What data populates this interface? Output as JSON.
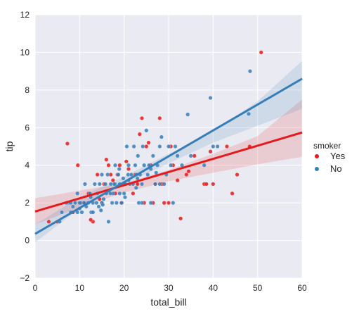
{
  "chart_data": {
    "type": "scatter",
    "xlabel": "total_bill",
    "ylabel": "tip",
    "xlim": [
      0,
      60
    ],
    "ylim": [
      -2,
      12
    ],
    "xticks": [
      0,
      10,
      20,
      30,
      40,
      50,
      60
    ],
    "yticks": [
      -2,
      0,
      2,
      4,
      6,
      8,
      10,
      12
    ],
    "grid": true,
    "legend": {
      "title": "smoker",
      "placement": "right"
    },
    "series": [
      {
        "name": "Yes",
        "color": "#e41a1c",
        "fit": {
          "intercept": 1.54,
          "slope": 0.07
        },
        "ci_band": {
          "x": [
            0,
            10,
            20,
            30,
            40,
            50,
            60
          ],
          "lower": [
            0.85,
            1.75,
            2.55,
            3.15,
            3.6,
            4.05,
            4.45
          ],
          "upper": [
            2.25,
            2.65,
            3.05,
            3.75,
            4.6,
            5.55,
            7.5
          ]
        },
        "points": [
          [
            7.25,
            5.15
          ],
          [
            9.6,
            4.0
          ],
          [
            5.0,
            1.0
          ],
          [
            3.07,
            1.0
          ],
          [
            11.0,
            2.0
          ],
          [
            12.0,
            2.5
          ],
          [
            13.0,
            1.0
          ],
          [
            12.5,
            1.1
          ],
          [
            14.0,
            3.5
          ],
          [
            15.0,
            2.0
          ],
          [
            15.5,
            3.0
          ],
          [
            16.0,
            4.3
          ],
          [
            16.5,
            4.0
          ],
          [
            17.0,
            3.5
          ],
          [
            18.0,
            2.5
          ],
          [
            18.5,
            3.5
          ],
          [
            19.0,
            4.0
          ],
          [
            19.5,
            2.0
          ],
          [
            20.0,
            3.0
          ],
          [
            20.5,
            4.2
          ],
          [
            21.0,
            3.8
          ],
          [
            22.0,
            2.5
          ],
          [
            22.5,
            3.5
          ],
          [
            23.0,
            3.0
          ],
          [
            23.5,
            5.65
          ],
          [
            24.0,
            6.5
          ],
          [
            24.5,
            2.0
          ],
          [
            25.0,
            5.0
          ],
          [
            25.5,
            5.2
          ],
          [
            26.0,
            4.0
          ],
          [
            27.0,
            3.0
          ],
          [
            28.0,
            6.5
          ],
          [
            28.5,
            3.0
          ],
          [
            29.0,
            2.0
          ],
          [
            30.0,
            2.0
          ],
          [
            30.5,
            5.0
          ],
          [
            32.0,
            3.2
          ],
          [
            32.7,
            1.17
          ],
          [
            34.0,
            3.5
          ],
          [
            34.5,
            3.68
          ],
          [
            38.0,
            3.0
          ],
          [
            38.5,
            3.0
          ],
          [
            39.4,
            4.73
          ],
          [
            40.0,
            3.0
          ],
          [
            43.1,
            5.0
          ],
          [
            44.3,
            2.5
          ],
          [
            45.4,
            3.5
          ],
          [
            48.2,
            5.0
          ],
          [
            50.8,
            10.0
          ],
          [
            10.3,
            2.0
          ],
          [
            8.5,
            1.5
          ],
          [
            14.5,
            2.2
          ],
          [
            17.5,
            3.2
          ],
          [
            26.5,
            2.0
          ],
          [
            31.0,
            4.0
          ],
          [
            35.8,
            4.5
          ]
        ]
      },
      {
        "name": "No",
        "color": "#377eb8",
        "fit": {
          "intercept": 0.35,
          "slope": 0.1375
        },
        "ci_band": {
          "x": [
            0,
            10,
            20,
            30,
            40,
            50,
            60
          ],
          "lower": [
            -0.1,
            1.7,
            3.0,
            4.1,
            5.2,
            6.1,
            7.0
          ],
          "upper": [
            0.85,
            2.3,
            3.4,
            4.6,
            5.8,
            7.4,
            9.55
          ]
        },
        "points": [
          [
            6.0,
            1.5
          ],
          [
            7.5,
            2.0
          ],
          [
            8.0,
            1.5
          ],
          [
            8.5,
            1.8
          ],
          [
            9.0,
            2.0
          ],
          [
            9.5,
            1.5
          ],
          [
            10.0,
            1.7
          ],
          [
            10.3,
            2.0
          ],
          [
            10.5,
            1.5
          ],
          [
            11.0,
            2.0
          ],
          [
            11.2,
            3.0
          ],
          [
            11.5,
            1.8
          ],
          [
            12.0,
            2.0
          ],
          [
            12.3,
            2.5
          ],
          [
            12.6,
            1.5
          ],
          [
            13.0,
            2.0
          ],
          [
            13.4,
            3.0
          ],
          [
            13.8,
            2.0
          ],
          [
            14.0,
            2.5
          ],
          [
            14.3,
            1.8
          ],
          [
            14.5,
            3.0
          ],
          [
            15.0,
            2.0
          ],
          [
            15.0,
            3.5
          ],
          [
            15.4,
            2.2
          ],
          [
            15.8,
            3.0
          ],
          [
            16.0,
            2.5
          ],
          [
            16.3,
            3.5
          ],
          [
            16.5,
            1.0
          ],
          [
            17.0,
            3.0
          ],
          [
            17.5,
            2.5
          ],
          [
            18.0,
            3.0
          ],
          [
            18.0,
            4.0
          ],
          [
            18.3,
            2.0
          ],
          [
            18.7,
            3.5
          ],
          [
            19.0,
            3.0
          ],
          [
            19.4,
            2.0
          ],
          [
            19.8,
            3.3
          ],
          [
            20.0,
            2.5
          ],
          [
            20.3,
            3.0
          ],
          [
            20.6,
            5.0
          ],
          [
            20.9,
            3.5
          ],
          [
            21.0,
            4.0
          ],
          [
            21.3,
            3.0
          ],
          [
            21.6,
            3.5
          ],
          [
            22.0,
            3.0
          ],
          [
            22.2,
            5.0
          ],
          [
            22.5,
            4.0
          ],
          [
            22.8,
            3.5
          ],
          [
            23.0,
            3.3
          ],
          [
            23.3,
            2.0
          ],
          [
            23.6,
            3.5
          ],
          [
            24.0,
            3.0
          ],
          [
            24.2,
            5.0
          ],
          [
            24.5,
            4.0
          ],
          [
            25.0,
            5.85
          ],
          [
            25.3,
            3.5
          ],
          [
            25.6,
            4.0
          ],
          [
            26.0,
            2.0
          ],
          [
            26.5,
            4.5
          ],
          [
            27.0,
            3.0
          ],
          [
            27.5,
            4.0
          ],
          [
            28.0,
            5.0
          ],
          [
            28.4,
            5.5
          ],
          [
            29.0,
            3.0
          ],
          [
            29.5,
            3.5
          ],
          [
            30.0,
            5.0
          ],
          [
            30.5,
            4.0
          ],
          [
            31.0,
            2.0
          ],
          [
            31.5,
            5.0
          ],
          [
            32.0,
            4.5
          ],
          [
            33.0,
            4.0
          ],
          [
            34.3,
            6.7
          ],
          [
            35.0,
            4.5
          ],
          [
            38.0,
            4.0
          ],
          [
            39.4,
            7.58
          ],
          [
            40.0,
            5.0
          ],
          [
            41.0,
            5.0
          ],
          [
            48.0,
            6.73
          ],
          [
            48.3,
            9.0
          ],
          [
            5.5,
            1.0
          ],
          [
            7.0,
            2.0
          ],
          [
            8.0,
            2.0
          ],
          [
            9.5,
            2.5
          ],
          [
            10.0,
            2.0
          ],
          [
            11.9,
            2.0
          ],
          [
            13.0,
            1.5
          ],
          [
            16.9,
            2.5
          ],
          [
            17.8,
            3.0
          ],
          [
            19.0,
            2.5
          ],
          [
            21.0,
            3.2
          ],
          [
            24.0,
            2.0
          ],
          [
            26.0,
            3.8
          ],
          [
            28.0,
            3.0
          ],
          [
            12.5,
            2.3
          ],
          [
            14.8,
            1.6
          ],
          [
            17.3,
            2.0
          ],
          [
            20.2,
            2.3
          ],
          [
            22.7,
            2.8
          ],
          [
            15.2,
            1.9
          ],
          [
            18.9,
            3.8
          ],
          [
            23.1,
            4.5
          ],
          [
            27.2,
            3.6
          ]
        ]
      }
    ]
  }
}
